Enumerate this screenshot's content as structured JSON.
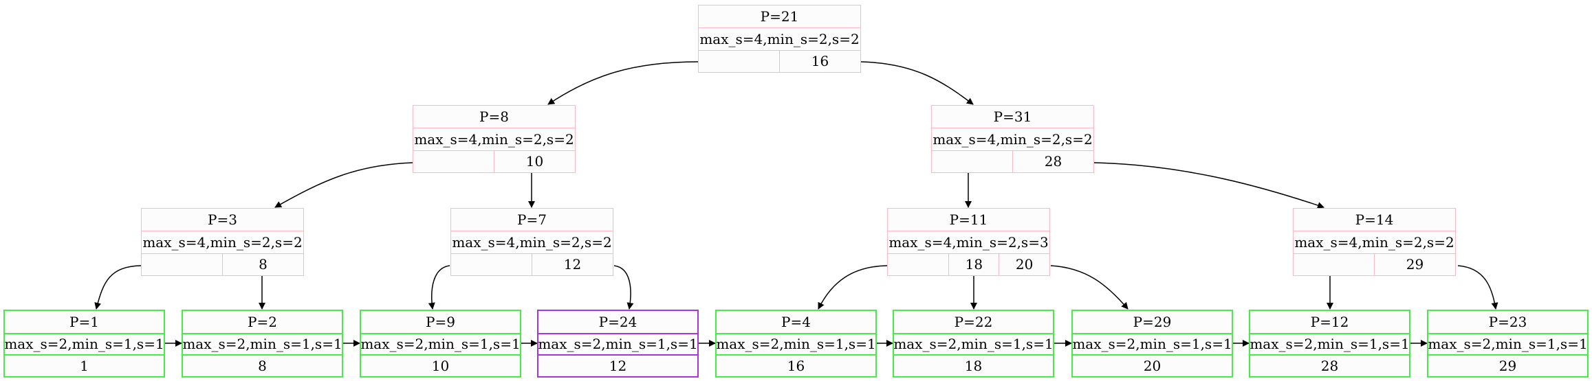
{
  "colors": {
    "internal_border": "#ffb6c1",
    "leaf_border": "#44ee44",
    "highlight_border": "#aa33dd",
    "edge": "#000000"
  },
  "nodes": {
    "p21": {
      "title": "P=21",
      "info": "max_s=4,min_s=2,s=2",
      "keys": [
        "",
        "16"
      ]
    },
    "p8": {
      "title": "P=8",
      "info": "max_s=4,min_s=2,s=2",
      "keys": [
        "",
        "10"
      ]
    },
    "p31": {
      "title": "P=31",
      "info": "max_s=4,min_s=2,s=2",
      "keys": [
        "",
        "28"
      ]
    },
    "p3": {
      "title": "P=3",
      "info": "max_s=4,min_s=2,s=2",
      "keys": [
        "",
        "8"
      ]
    },
    "p7": {
      "title": "P=7",
      "info": "max_s=4,min_s=2,s=2",
      "keys": [
        "",
        "12"
      ]
    },
    "p11": {
      "title": "P=11",
      "info": "max_s=4,min_s=2,s=3",
      "keys": [
        "",
        "18",
        "20"
      ]
    },
    "p14": {
      "title": "P=14",
      "info": "max_s=4,min_s=2,s=2",
      "keys": [
        "",
        "29"
      ]
    },
    "p1": {
      "title": "P=1",
      "info": "max_s=2,min_s=1,s=1",
      "value": "1"
    },
    "p2": {
      "title": "P=2",
      "info": "max_s=2,min_s=1,s=1",
      "value": "8"
    },
    "p9": {
      "title": "P=9",
      "info": "max_s=2,min_s=1,s=1",
      "value": "10"
    },
    "p24": {
      "title": "P=24",
      "info": "max_s=2,min_s=1,s=1",
      "value": "12"
    },
    "p4": {
      "title": "P=4",
      "info": "max_s=2,min_s=1,s=1",
      "value": "16"
    },
    "p22": {
      "title": "P=22",
      "info": "max_s=2,min_s=1,s=1",
      "value": "18"
    },
    "p29": {
      "title": "P=29",
      "info": "max_s=2,min_s=1,s=1",
      "value": "20"
    },
    "p12": {
      "title": "P=12",
      "info": "max_s=2,min_s=1,s=1",
      "value": "28"
    },
    "p23": {
      "title": "P=23",
      "info": "max_s=2,min_s=1,s=1",
      "value": "29"
    }
  }
}
